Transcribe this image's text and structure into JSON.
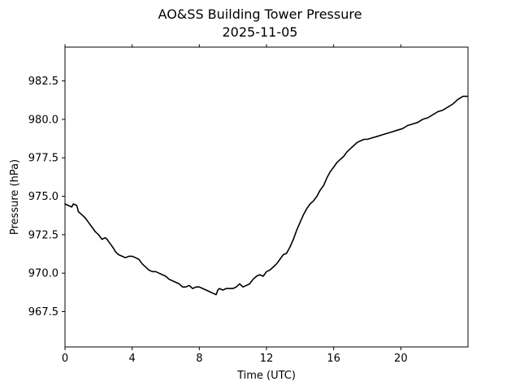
{
  "chart_data": {
    "type": "line",
    "title": "AO&SS Building Tower Pressure",
    "subtitle": "2025-11-05",
    "xlabel": "Time (UTC)",
    "ylabel": "Pressure (hPa)",
    "xlim": [
      0,
      24
    ],
    "ylim": [
      965.2,
      984.7
    ],
    "x_ticks": [
      0,
      4,
      8,
      12,
      16,
      20
    ],
    "x_tick_labels": [
      "0",
      "4",
      "8",
      "12",
      "16",
      "20"
    ],
    "y_ticks": [
      967.5,
      970.0,
      972.5,
      975.0,
      977.5,
      980.0,
      982.5
    ],
    "y_tick_labels": [
      "967.5",
      "970.0",
      "972.5",
      "975.0",
      "977.5",
      "980.0",
      "982.5"
    ],
    "grid": false,
    "colors": {
      "line": "#000000"
    },
    "series": [
      {
        "x": [
          0,
          0.2,
          0.4,
          0.5,
          0.7,
          0.8,
          1.0,
          1.2,
          1.4,
          1.6,
          1.8,
          2.0,
          2.2,
          2.4,
          2.5,
          2.7,
          2.9,
          3.0,
          3.2,
          3.4,
          3.6,
          3.8,
          4.0,
          4.2,
          4.4,
          4.6,
          4.8,
          5.0,
          5.2,
          5.4,
          5.6,
          5.8,
          6.0,
          6.2,
          6.4,
          6.6,
          6.8,
          7.0,
          7.2,
          7.4,
          7.6,
          7.8,
          8.0,
          8.2,
          8.4,
          8.6,
          8.8,
          9.0,
          9.1,
          9.2,
          9.4,
          9.6,
          9.8,
          10.0,
          10.2,
          10.4,
          10.6,
          10.8,
          11.0,
          11.2,
          11.4,
          11.6,
          11.8,
          12.0,
          12.2,
          12.4,
          12.6,
          12.8,
          13.0,
          13.2,
          13.4,
          13.6,
          13.8,
          14.0,
          14.2,
          14.4,
          14.6,
          14.8,
          15.0,
          15.2,
          15.4,
          15.6,
          15.8,
          16.0,
          16.2,
          16.4,
          16.6,
          16.8,
          17.0,
          17.2,
          17.4,
          17.6,
          17.8,
          18.0,
          18.3,
          18.6,
          18.9,
          19.2,
          19.5,
          19.8,
          20.1,
          20.4,
          20.7,
          21.0,
          21.3,
          21.6,
          21.9,
          22.2,
          22.5,
          22.8,
          23.1,
          23.4,
          23.7,
          23.95
        ],
        "y": [
          974.5,
          974.4,
          974.3,
          974.5,
          974.4,
          974.0,
          973.8,
          973.6,
          973.3,
          973.0,
          972.7,
          972.5,
          972.2,
          972.3,
          972.2,
          971.9,
          971.6,
          971.4,
          971.2,
          971.1,
          971.0,
          971.1,
          971.1,
          971.0,
          970.9,
          970.6,
          970.4,
          970.2,
          970.1,
          970.1,
          970.0,
          969.9,
          969.8,
          969.6,
          969.5,
          969.4,
          969.3,
          969.1,
          969.1,
          969.2,
          969.0,
          969.1,
          969.1,
          969.0,
          968.9,
          968.8,
          968.7,
          968.6,
          968.9,
          969.0,
          968.9,
          969.0,
          969.0,
          969.0,
          969.1,
          969.3,
          969.1,
          969.2,
          969.3,
          969.6,
          969.8,
          969.9,
          969.8,
          970.1,
          970.2,
          970.4,
          970.6,
          970.9,
          971.2,
          971.3,
          971.7,
          972.2,
          972.8,
          973.3,
          973.8,
          974.2,
          974.5,
          974.7,
          975.0,
          975.4,
          975.7,
          976.2,
          976.6,
          976.9,
          977.2,
          977.4,
          977.6,
          977.9,
          978.1,
          978.3,
          978.5,
          978.6,
          978.7,
          978.7,
          978.8,
          978.9,
          979.0,
          979.1,
          979.2,
          979.3,
          979.4,
          979.6,
          979.7,
          979.8,
          980.0,
          980.1,
          980.3,
          980.5,
          980.6,
          980.8,
          981.0,
          981.3,
          981.5,
          981.5
        ]
      }
    ]
  }
}
